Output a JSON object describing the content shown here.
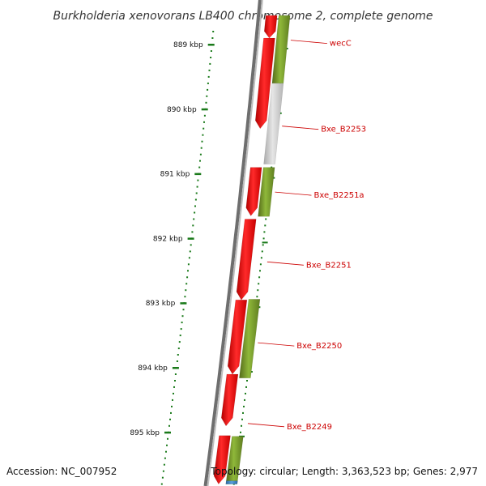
{
  "title": "Burkholderia xenovorans LB400 chromosome 2, complete genome",
  "accession": "Accession: NC_007952",
  "topology": "Topology: circular; Length: 3,363,523 bp; Genes: 2,977",
  "colors": {
    "forward_gene": "#e00000",
    "reverse_gene": "#6b8e23",
    "pseudo_gene": "#c0c0c0",
    "rna_gene": "#3a7fc0",
    "backbone": "#777777",
    "tick": "#1a7a1a",
    "label": "#cc0000"
  },
  "kbp_ticks": [
    {
      "label": "889 kbp",
      "kb": 889
    },
    {
      "label": "890 kbp",
      "kb": 890
    },
    {
      "label": "891 kbp",
      "kb": 891
    },
    {
      "label": "892 kbp",
      "kb": 892
    },
    {
      "label": "893 kbp",
      "kb": 893
    },
    {
      "label": "894 kbp",
      "kb": 894
    },
    {
      "label": "895 kbp",
      "kb": 895
    }
  ],
  "genes": [
    {
      "strand": "forward",
      "start_kb": 888.55,
      "end_kb": 888.9
    },
    {
      "strand": "forward",
      "start_kb": 888.9,
      "end_kb": 890.3
    },
    {
      "strand": "forward",
      "start_kb": 890.9,
      "end_kb": 891.65
    },
    {
      "strand": "forward",
      "start_kb": 891.7,
      "end_kb": 892.95
    },
    {
      "strand": "forward",
      "start_kb": 892.95,
      "end_kb": 894.1
    },
    {
      "strand": "forward",
      "start_kb": 894.1,
      "end_kb": 894.9
    },
    {
      "strand": "forward",
      "start_kb": 895.05,
      "end_kb": 895.8
    },
    {
      "strand": "reverse",
      "start_kb": 888.55,
      "end_kb": 889.6
    },
    {
      "strand": "pseudo",
      "start_kb": 889.6,
      "end_kb": 890.85
    },
    {
      "strand": "reverse",
      "start_kb": 890.9,
      "end_kb": 891.66
    },
    {
      "strand": "reverse",
      "start_kb": 892.94,
      "end_kb": 894.16
    },
    {
      "strand": "reverse",
      "start_kb": 895.06,
      "end_kb": 895.8
    },
    {
      "strand": "rna",
      "start_kb": 895.75,
      "end_kb": 895.8
    }
  ],
  "gene_labels": [
    {
      "name": "wecC",
      "kb": 888.97
    },
    {
      "name": "Bxe_B2253",
      "kb": 890.3
    },
    {
      "name": "Bxe_B2251a",
      "kb": 891.32
    },
    {
      "name": "Bxe_B2251",
      "kb": 892.4
    },
    {
      "name": "Bxe_B2250",
      "kb": 893.65
    },
    {
      "name": "Bxe_B2249",
      "kb": 894.9
    }
  ]
}
